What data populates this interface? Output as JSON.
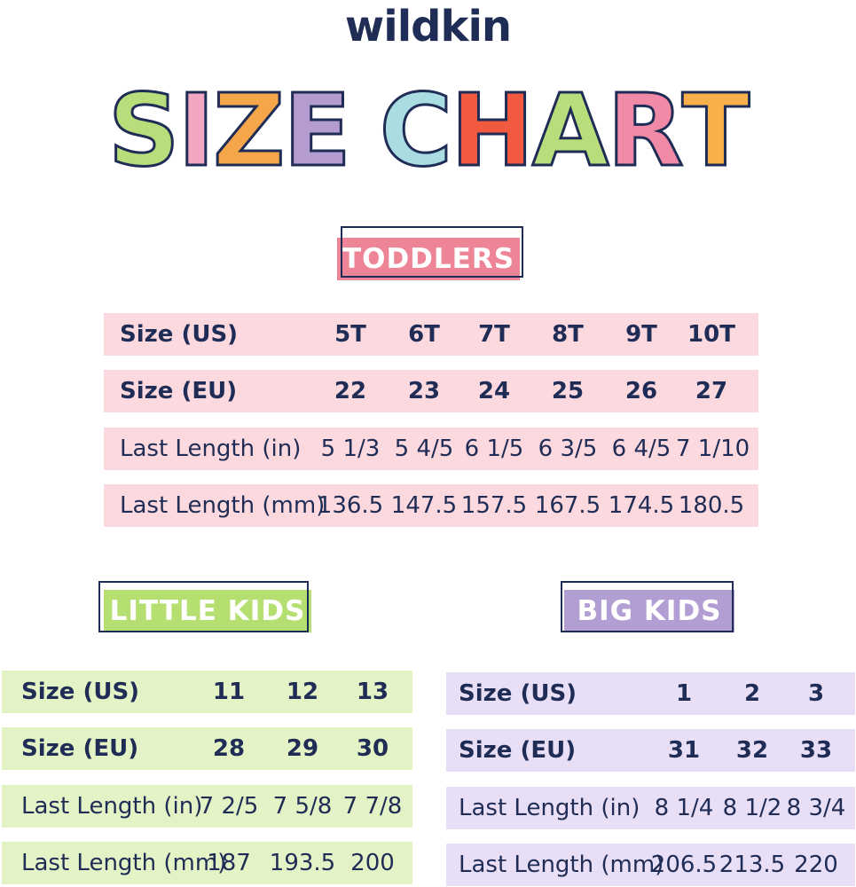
{
  "brand": "wildkin",
  "title": {
    "letters": [
      "S",
      "I",
      "Z",
      "E",
      "C",
      "H",
      "A",
      "R",
      "T"
    ],
    "colors": [
      "#b9dd7a",
      "#f2a6c2",
      "#f5a54a",
      "#b49bd0",
      "#a9dde1",
      "#f15a3e",
      "#b9dd7a",
      "#f08aa6",
      "#f8b04a"
    ]
  },
  "toddlers": {
    "label": "TODDLERS",
    "color": "#ee8597",
    "row_color": "#fcd9de",
    "rows": [
      {
        "label": "Size (US)",
        "values": [
          "5T",
          "6T",
          "7T",
          "8T",
          "9T",
          "10T"
        ]
      },
      {
        "label": "Size (EU)",
        "values": [
          "22",
          "23",
          "24",
          "25",
          "26",
          "27"
        ]
      },
      {
        "label": "Last Length (in)",
        "values": [
          "5 1/3",
          "5 4/5",
          "6 1/5",
          "6 3/5",
          "6 4/5",
          "7 1/10"
        ]
      },
      {
        "label": "Last Length (mm)",
        "values": [
          "136.5",
          "147.5",
          "157.5",
          "167.5",
          "174.5",
          "180.5"
        ]
      }
    ]
  },
  "little_kids": {
    "label": "LITTLE KIDS",
    "color": "#b6df71",
    "row_color": "#e4f3c6",
    "rows": [
      {
        "label": "Size (US)",
        "values": [
          "11",
          "12",
          "13"
        ]
      },
      {
        "label": "Size (EU)",
        "values": [
          "28",
          "29",
          "30"
        ]
      },
      {
        "label": "Last Length (in)",
        "values": [
          "7 2/5",
          "7 5/8",
          "7 7/8"
        ]
      },
      {
        "label": "Last Length (mm)",
        "values": [
          "187",
          "193.5",
          "200"
        ]
      }
    ]
  },
  "big_kids": {
    "label": "BIG KIDS",
    "color": "#b29ed2",
    "row_color": "#e8def5",
    "rows": [
      {
        "label": "Size (US)",
        "values": [
          "1",
          "2",
          "3"
        ]
      },
      {
        "label": "Size (EU)",
        "values": [
          "31",
          "32",
          "33"
        ]
      },
      {
        "label": "Last Length (in)",
        "values": [
          "8 1/4",
          "8 1/2",
          "8 3/4"
        ]
      },
      {
        "label": "Last Length (mm)",
        "values": [
          "206.5",
          "213.5",
          "220"
        ]
      }
    ]
  }
}
